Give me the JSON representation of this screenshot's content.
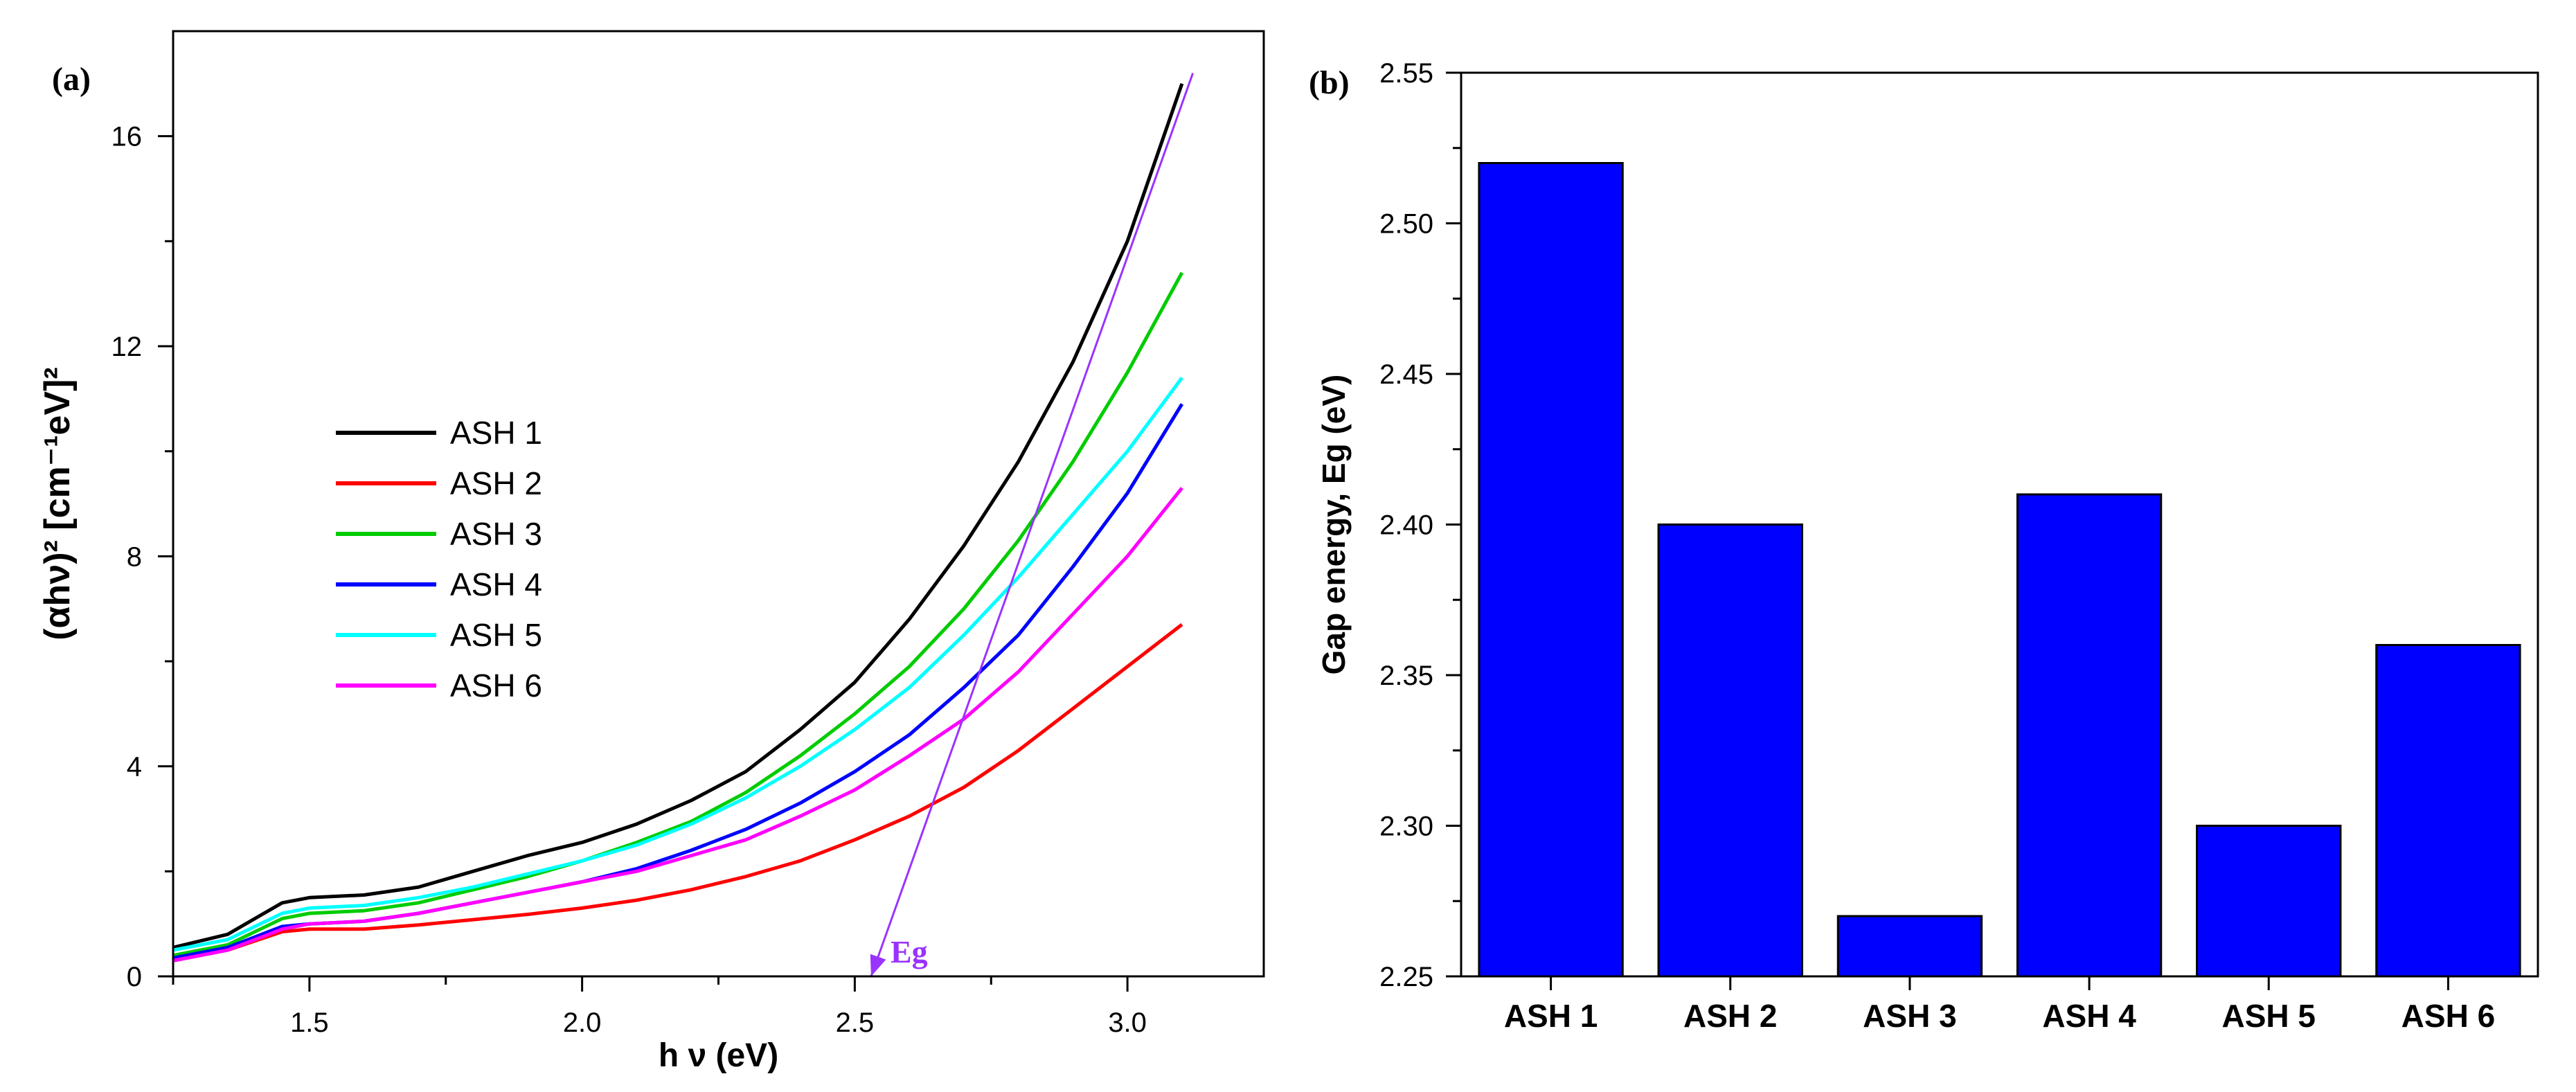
{
  "chart_data": [
    {
      "panel_label": "(a)",
      "type": "line",
      "title": "",
      "xlabel": "h ν (eV)",
      "ylabel": "(αhν)² [cm⁻¹eV]²",
      "xlim": [
        1.25,
        3.25
      ],
      "ylim": [
        0,
        18
      ],
      "xticks": [
        "1.5",
        "2.0",
        "2.5",
        "3.0"
      ],
      "xtick_values": [
        1.5,
        2.0,
        2.5,
        3.0
      ],
      "yticks": [
        "0",
        "4",
        "8",
        "12",
        "16"
      ],
      "ytick_values": [
        0,
        4,
        8,
        12,
        16
      ],
      "legend_position": "middle-left",
      "series": [
        {
          "name": "ASH 1",
          "color": "#000000",
          "x": [
            1.25,
            1.35,
            1.45,
            1.5,
            1.6,
            1.7,
            1.8,
            1.9,
            2.0,
            2.1,
            2.2,
            2.3,
            2.4,
            2.5,
            2.6,
            2.7,
            2.8,
            2.9,
            3.0,
            3.1
          ],
          "y": [
            0.55,
            0.8,
            1.4,
            1.5,
            1.55,
            1.7,
            2.0,
            2.3,
            2.55,
            2.9,
            3.35,
            3.9,
            4.7,
            5.6,
            6.8,
            8.2,
            9.8,
            11.7,
            14.0,
            17.0
          ]
        },
        {
          "name": "ASH 2",
          "color": "#ff0000",
          "x": [
            1.25,
            1.35,
            1.45,
            1.5,
            1.6,
            1.7,
            1.8,
            1.9,
            2.0,
            2.1,
            2.2,
            2.3,
            2.4,
            2.5,
            2.6,
            2.7,
            2.8,
            2.9,
            3.0,
            3.1
          ],
          "y": [
            0.3,
            0.5,
            0.85,
            0.9,
            0.9,
            0.98,
            1.08,
            1.18,
            1.3,
            1.45,
            1.65,
            1.9,
            2.2,
            2.6,
            3.05,
            3.6,
            4.3,
            5.1,
            5.9,
            6.7
          ]
        },
        {
          "name": "ASH 3",
          "color": "#00cc00",
          "x": [
            1.25,
            1.35,
            1.45,
            1.5,
            1.6,
            1.7,
            1.8,
            1.9,
            2.0,
            2.1,
            2.2,
            2.3,
            2.4,
            2.5,
            2.6,
            2.7,
            2.8,
            2.9,
            3.0,
            3.1
          ],
          "y": [
            0.4,
            0.6,
            1.1,
            1.2,
            1.25,
            1.4,
            1.65,
            1.9,
            2.2,
            2.55,
            2.95,
            3.5,
            4.2,
            5.0,
            5.9,
            7.0,
            8.3,
            9.8,
            11.5,
            13.4
          ]
        },
        {
          "name": "ASH 4",
          "color": "#0000ff",
          "x": [
            1.25,
            1.35,
            1.45,
            1.5,
            1.6,
            1.7,
            1.8,
            1.9,
            2.0,
            2.1,
            2.2,
            2.3,
            2.4,
            2.5,
            2.6,
            2.7,
            2.8,
            2.9,
            3.0,
            3.1
          ],
          "y": [
            0.35,
            0.55,
            0.95,
            1.0,
            1.05,
            1.2,
            1.4,
            1.6,
            1.8,
            2.05,
            2.4,
            2.8,
            3.3,
            3.9,
            4.6,
            5.5,
            6.5,
            7.8,
            9.2,
            10.9
          ]
        },
        {
          "name": "ASH 5",
          "color": "#00ffff",
          "x": [
            1.25,
            1.35,
            1.45,
            1.5,
            1.6,
            1.7,
            1.8,
            1.9,
            2.0,
            2.1,
            2.2,
            2.3,
            2.4,
            2.5,
            2.6,
            2.7,
            2.8,
            2.9,
            3.0,
            3.1
          ],
          "y": [
            0.5,
            0.7,
            1.2,
            1.3,
            1.35,
            1.5,
            1.7,
            1.95,
            2.2,
            2.5,
            2.9,
            3.4,
            4.0,
            4.7,
            5.5,
            6.5,
            7.6,
            8.8,
            10.0,
            11.4
          ]
        },
        {
          "name": "ASH 6",
          "color": "#ff00ff",
          "x": [
            1.25,
            1.35,
            1.45,
            1.5,
            1.6,
            1.7,
            1.8,
            1.9,
            2.0,
            2.1,
            2.2,
            2.3,
            2.4,
            2.5,
            2.6,
            2.7,
            2.8,
            2.9,
            3.0,
            3.1
          ],
          "y": [
            0.3,
            0.5,
            0.9,
            1.0,
            1.05,
            1.2,
            1.4,
            1.6,
            1.8,
            2.0,
            2.3,
            2.6,
            3.05,
            3.55,
            4.2,
            4.9,
            5.8,
            6.9,
            8.0,
            9.3
          ]
        }
      ],
      "annotation": {
        "text": "Eg",
        "color": "#9933ff",
        "arrow_from": [
          3.12,
          17.2
        ],
        "arrow_to": [
          2.53,
          0.0
        ]
      }
    },
    {
      "panel_label": "(b)",
      "type": "bar",
      "title": "",
      "xlabel": "",
      "ylabel": "Gap energy, Eg (eV)",
      "categories": [
        "ASH 1",
        "ASH 2",
        "ASH 3",
        "ASH 4",
        "ASH 5",
        "ASH 6"
      ],
      "values": [
        2.52,
        2.4,
        2.27,
        2.41,
        2.3,
        2.36
      ],
      "ylim": [
        2.25,
        2.55
      ],
      "yticks": [
        "2.25",
        "2.30",
        "2.35",
        "2.40",
        "2.45",
        "2.50",
        "2.55"
      ],
      "ytick_values": [
        2.25,
        2.3,
        2.35,
        2.4,
        2.45,
        2.5,
        2.55
      ],
      "bar_color": "#0000ff",
      "grid": false
    }
  ]
}
